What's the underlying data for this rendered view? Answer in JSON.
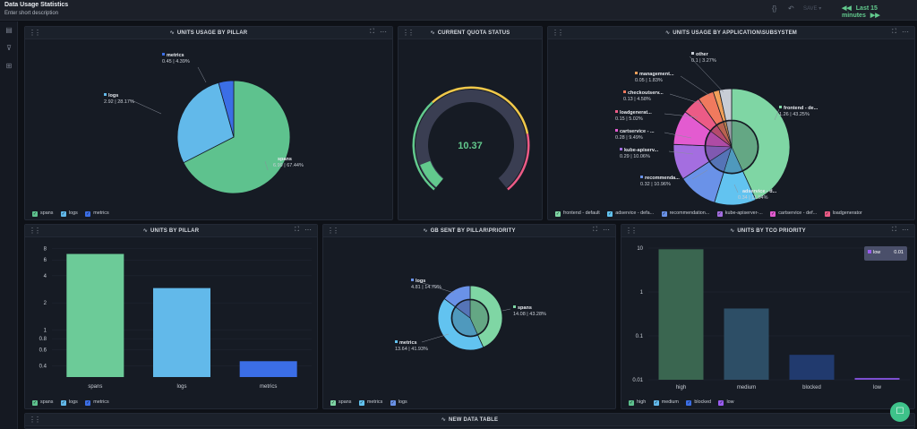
{
  "header": {
    "title": "Data Usage Statistics",
    "description": "Enter short description",
    "save_label": "SAVE",
    "time_range": "Last 15 minutes"
  },
  "panels": {
    "units_by_pillar_pie": {
      "title": "UNITS USAGE BY PILLAR"
    },
    "quota": {
      "title": "CURRENT QUOTA STATUS",
      "value": "10.37"
    },
    "by_app": {
      "title": "UNITS USAGE BY APPLICATION\\SUBSYSTEM"
    },
    "units_by_pillar_bar": {
      "title": "UNITS BY PILLAR"
    },
    "gb_sent": {
      "title": "GB SENT BY PILLAR\\PRIORITY"
    },
    "tco": {
      "title": "UNITS BY TCO PRIORITY",
      "tooltip_label": "low",
      "tooltip_value": "0.01"
    },
    "table": {
      "title": "NEW DATA TABLE"
    }
  },
  "colors": {
    "spans": "#5ec28e",
    "logs": "#62b9ea",
    "metrics": "#3b6ee6",
    "accent": "#62c98d"
  },
  "chart_data": [
    {
      "type": "pie",
      "title": "UNITS USAGE BY PILLAR",
      "slices": [
        {
          "name": "spans",
          "value": 6.99,
          "percent": "67.44%",
          "color": "#5ec28e"
        },
        {
          "name": "logs",
          "value": 2.92,
          "percent": "28.17%",
          "color": "#62b9ea"
        },
        {
          "name": "metrics",
          "value": 0.45,
          "percent": "4.39%",
          "color": "#3b6ee6"
        }
      ],
      "legend": [
        "spans",
        "logs",
        "metrics"
      ]
    },
    {
      "type": "gauge",
      "title": "CURRENT QUOTA STATUS",
      "value": 10.37
    },
    {
      "type": "pie",
      "title": "UNITS USAGE BY APPLICATION\\SUBSYSTEM",
      "slices": [
        {
          "name": "frontend - de...",
          "value": 1.26,
          "percent": "43.25%",
          "color": "#7fd6a4"
        },
        {
          "name": "adservice - d...",
          "value": 0.34,
          "percent": "11.54%",
          "color": "#62c3f0"
        },
        {
          "name": "recommenda...",
          "value": 0.32,
          "percent": "10.96%",
          "color": "#6a92e8"
        },
        {
          "name": "kube-apiserv...",
          "value": 0.29,
          "percent": "10.06%",
          "color": "#a46ee0"
        },
        {
          "name": "cartservice - ...",
          "value": 0.28,
          "percent": "9.49%",
          "color": "#e35bd0"
        },
        {
          "name": "loadgenerat...",
          "value": 0.15,
          "percent": "5.02%",
          "color": "#ec5b86"
        },
        {
          "name": "checkoutserv...",
          "value": 0.13,
          "percent": "4.58%",
          "color": "#f07a5e"
        },
        {
          "name": "management...",
          "value": 0.05,
          "percent": "1.83%",
          "color": "#f0a05a"
        },
        {
          "name": "other",
          "value": 0.1,
          "percent": "3.27%",
          "color": "#c8cdd6"
        }
      ],
      "legend": [
        "frontend - default",
        "adservice - defa...",
        "recommendation...",
        "kube-apiserver-...",
        "cartservice - def...",
        "loadgenerator"
      ]
    },
    {
      "type": "bar",
      "title": "UNITS BY PILLAR",
      "categories": [
        "spans",
        "logs",
        "metrics"
      ],
      "values": [
        6.99,
        2.92,
        0.45
      ],
      "yscale": "log",
      "yticks": [
        "8",
        "6",
        "4",
        "2",
        "1",
        "0.8",
        "0.6",
        "0.4"
      ],
      "legend": [
        "spans",
        "logs",
        "metrics"
      ]
    },
    {
      "type": "pie",
      "title": "GB SENT BY PILLAR\\PRIORITY",
      "slices": [
        {
          "name": "spans",
          "value": 14.08,
          "percent": "43.28%",
          "color": "#7fd6a4"
        },
        {
          "name": "metrics",
          "value": 13.64,
          "percent": "41.93%",
          "color": "#62c3f0"
        },
        {
          "name": "logs",
          "value": 4.81,
          "percent": "14.79%",
          "color": "#6a92e8"
        }
      ],
      "legend": [
        "spans",
        "metrics",
        "logs"
      ]
    },
    {
      "type": "bar",
      "title": "UNITS BY TCO PRIORITY",
      "categories": [
        "high",
        "medium",
        "blocked",
        "low"
      ],
      "values": [
        9.4,
        0.42,
        0.037,
        0.011
      ],
      "yscale": "log",
      "yticks": [
        "10",
        "1",
        "0.1",
        "0.01"
      ],
      "legend": [
        "high",
        "medium",
        "blocked",
        "low"
      ]
    }
  ]
}
